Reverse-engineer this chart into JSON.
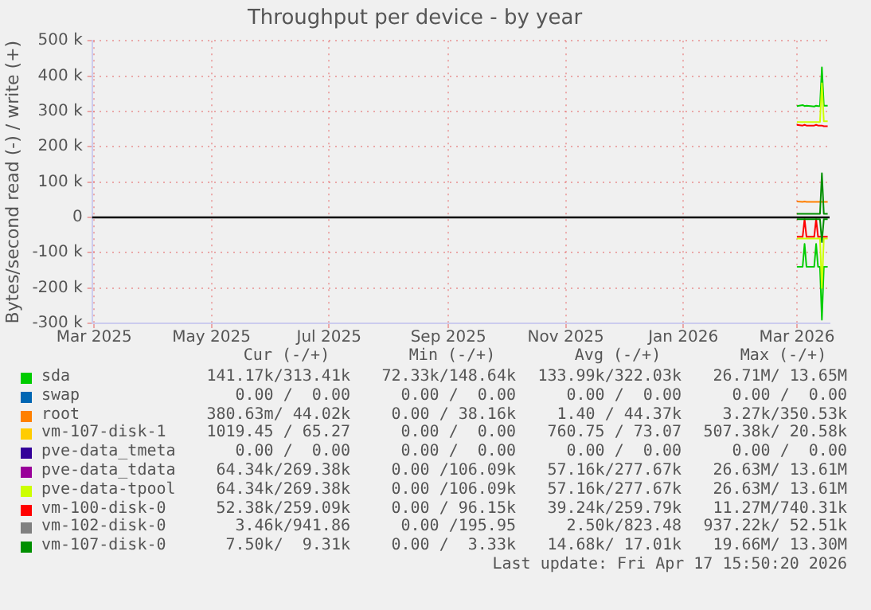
{
  "chart_data": {
    "type": "line",
    "title": "Throughput per device - by year",
    "ylabel": "Bytes/second read (-) / write (+)",
    "x": [
      "2026-03-01",
      "2026-03-04",
      "2026-03-05",
      "2026-03-06",
      "2026-03-10",
      "2026-03-11",
      "2026-03-12",
      "2026-03-13",
      "2026-03-14",
      "2026-03-15",
      "2026-03-17"
    ],
    "xlim": [
      "2025-02-28",
      "2026-03-18"
    ],
    "xticks": [
      {
        "value": "2025-03-01",
        "label": "Mar 2025"
      },
      {
        "value": "2025-05-01",
        "label": "May 2025"
      },
      {
        "value": "2025-07-01",
        "label": "Jul 2025"
      },
      {
        "value": "2025-09-01",
        "label": "Sep 2025"
      },
      {
        "value": "2025-11-01",
        "label": "Nov 2025"
      },
      {
        "value": "2026-01-01",
        "label": "Jan 2026"
      },
      {
        "value": "2026-03-01",
        "label": "Mar 2026"
      }
    ],
    "ylim": [
      -300000,
      500000
    ],
    "yticks": [
      {
        "value": -300000,
        "label": "-300 k"
      },
      {
        "value": -200000,
        "label": "-200 k"
      },
      {
        "value": -100000,
        "label": "-100 k"
      },
      0,
      {
        "value": 100000,
        "label": "100 k"
      },
      {
        "value": 200000,
        "label": "200 k"
      },
      {
        "value": 300000,
        "label": "300 k"
      },
      {
        "value": 400000,
        "label": "400 k"
      },
      {
        "value": 500000,
        "label": "500 k"
      }
    ],
    "grid": true,
    "legend": "bottom",
    "ref_lines": [
      {
        "axis": "y",
        "value": 0,
        "color": "#000000"
      }
    ],
    "series": [
      {
        "name": "sda",
        "color": "#00cc00",
        "values": [
          315000,
          318000,
          315000,
          316000,
          314000,
          316000,
          315000,
          315000,
          425000,
          316000,
          316000
        ]
      },
      {
        "color": "#00cc00",
        "values": [
          -140000,
          -140000,
          -75000,
          -140000,
          -140000,
          -75000,
          -140000,
          -140000,
          -290000,
          -140000,
          -140000
        ]
      },
      {
        "name": "swap",
        "color": "#0066b3",
        "values": [
          null,
          null,
          null,
          null,
          null,
          null,
          null,
          null,
          null,
          null,
          null
        ]
      },
      {
        "name": "root",
        "color": "#ff8000",
        "values": [
          45000,
          44000,
          45000,
          44000,
          44000,
          44000,
          44000,
          44000,
          44000,
          44000,
          44000
        ]
      },
      {
        "name": "vm-107-disk-1",
        "color": "#ffcc00",
        "values": [
          null,
          null,
          null,
          null,
          null,
          null,
          null,
          null,
          null,
          null,
          null
        ]
      },
      {
        "name": "pve-data_tmeta",
        "color": "#330099",
        "values": [
          null,
          null,
          null,
          null,
          null,
          null,
          null,
          null,
          null,
          null,
          null
        ]
      },
      {
        "name": "pve-data_tdata",
        "color": "#990099",
        "values": [
          null,
          null,
          null,
          null,
          null,
          null,
          null,
          null,
          null,
          null,
          null
        ]
      },
      {
        "name": "pve-data-tpool",
        "color": "#ccff00",
        "values": [
          270000,
          270000,
          270000,
          270000,
          270000,
          270000,
          270000,
          270000,
          380000,
          272000,
          272000
        ]
      },
      {
        "color": "#ccff00",
        "values": [
          -60000,
          -60000,
          -60000,
          -60000,
          -60000,
          -60000,
          -60000,
          -60000,
          -200000,
          -60000,
          -60000
        ]
      },
      {
        "name": "vm-100-disk-0",
        "color": "#ff0000",
        "values": [
          262000,
          260000,
          262000,
          260000,
          260000,
          262000,
          260000,
          260000,
          260000,
          258000,
          258000
        ]
      },
      {
        "color": "#ff0000",
        "values": [
          -55000,
          -55000,
          -5000,
          -55000,
          -55000,
          -5000,
          -55000,
          -55000,
          -55000,
          -55000,
          -55000
        ]
      },
      {
        "name": "vm-102-disk-0",
        "color": "#808080",
        "values": [
          null,
          null,
          null,
          null,
          null,
          null,
          null,
          null,
          null,
          null,
          null
        ]
      },
      {
        "name": "vm-107-disk-0",
        "color": "#008f00",
        "values": [
          10000,
          10000,
          10000,
          10000,
          10000,
          10000,
          10000,
          10000,
          125000,
          10000,
          10000
        ]
      },
      {
        "color": "#008f00",
        "values": [
          -5000,
          -5000,
          -5000,
          -5000,
          -5000,
          -5000,
          -5000,
          -5000,
          -70000,
          -5000,
          -5000
        ]
      }
    ],
    "annotations": [
      "Cur (-/+)",
      "Min (-/+)",
      "Avg (-/+)",
      "Max (-/+)",
      "141.17k/313.41k",
      "72.33k/148.64k",
      "133.99k/322.03k",
      "26.71M/ 13.65M",
      "0.00 /  0.00",
      "0.00 /  0.00",
      "0.00 /  0.00",
      "0.00 /  0.00",
      "380.63m/ 44.02k",
      "0.00 / 38.16k",
      "1.40 / 44.37k",
      "3.27k/350.53k",
      "1019.45 / 65.27",
      "0.00 /  0.00",
      "760.75 / 73.07",
      "507.38k/ 20.58k",
      "0.00 /  0.00",
      "0.00 /  0.00",
      "0.00 /  0.00",
      "0.00 /  0.00",
      "64.34k/269.38k",
      "0.00 /106.09k",
      "57.16k/277.67k",
      "26.63M/ 13.61M",
      "64.34k/269.38k",
      "0.00 /106.09k",
      "57.16k/277.67k",
      "26.63M/ 13.61M",
      "52.38k/259.09k",
      "0.00 / 96.15k",
      "39.24k/259.79k",
      "11.27M/740.31k",
      "3.46k/941.86",
      "0.00 /195.95",
      "2.50k/823.48",
      "937.22k/ 52.51k",
      "7.50k/  9.31k",
      "0.00 /  3.33k",
      "14.68k/ 17.01k",
      "19.66M/ 13.30M",
      "Last update: Fri Apr 17 15:50:20 2026"
    ]
  }
}
